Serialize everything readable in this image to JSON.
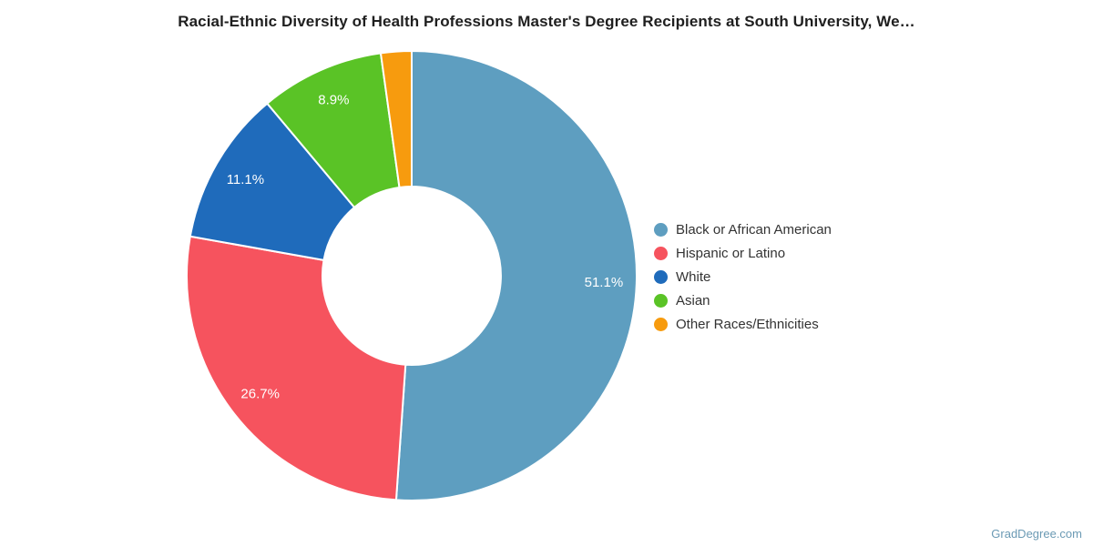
{
  "chart_data": {
    "type": "pie",
    "subtype": "donut",
    "title": "Racial-Ethnic Diversity of Health Professions Master's Degree Recipients at South University, We…",
    "direction": "clockwise",
    "start_angle_deg": 0,
    "legend_position": "right",
    "pct_label_color": "#ffffff",
    "slices": [
      {
        "label": "Black or African American",
        "value": 51.1,
        "pct_label": "51.1%",
        "color": "#5e9ec0"
      },
      {
        "label": "Hispanic or Latino",
        "value": 26.7,
        "pct_label": "26.7%",
        "color": "#f6535e"
      },
      {
        "label": "White",
        "value": 11.1,
        "pct_label": "11.1%",
        "color": "#1f6bbb"
      },
      {
        "label": "Asian",
        "value": 8.9,
        "pct_label": "8.9%",
        "color": "#5ac326"
      },
      {
        "label": "Other Races/Ethnicities",
        "value": 2.2,
        "pct_label": "",
        "color": "#f79b0e"
      }
    ]
  },
  "footer": {
    "watermark": "GradDegree.com"
  }
}
